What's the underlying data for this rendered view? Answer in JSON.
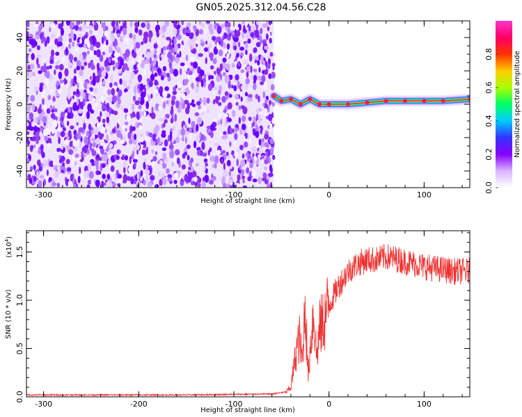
{
  "title": "GN05.2025.312.04.56.C28",
  "chart_data": [
    {
      "type": "heatmap",
      "xlabel": "Height of straight line (km)",
      "ylabel": "Frequency (Hz)",
      "xlim": [
        -318,
        148
      ],
      "ylim": [
        -50,
        50
      ],
      "x_ticks": [
        -300,
        -200,
        -100,
        0,
        100
      ],
      "x_tick_labels": [
        "-300",
        "-200",
        "-100",
        "0",
        "100"
      ],
      "y_ticks": [
        -40,
        -20,
        0,
        20,
        40
      ],
      "y_tick_labels": [
        "-40",
        "-20",
        "0",
        "20",
        "40"
      ],
      "noise_region_x": [
        -318,
        -58
      ],
      "ridge": [
        {
          "x": -58,
          "y": 5
        },
        {
          "x": -50,
          "y": 2
        },
        {
          "x": -40,
          "y": 3
        },
        {
          "x": -30,
          "y": 0
        },
        {
          "x": -20,
          "y": 3
        },
        {
          "x": -10,
          "y": 0
        },
        {
          "x": 0,
          "y": 0
        },
        {
          "x": 20,
          "y": 0
        },
        {
          "x": 40,
          "y": 1
        },
        {
          "x": 60,
          "y": 2
        },
        {
          "x": 80,
          "y": 2
        },
        {
          "x": 100,
          "y": 2
        },
        {
          "x": 120,
          "y": 2
        },
        {
          "x": 148,
          "y": 3
        }
      ],
      "colorbar": {
        "label": "Normalized spectral amplitude",
        "ticks": [
          0.0,
          0.2,
          0.4,
          0.6,
          0.8
        ],
        "tick_labels": [
          "0.0",
          "0.2",
          "0.4",
          "0.6",
          "0.8"
        ],
        "range": [
          0,
          1
        ],
        "colors": [
          "#ffffff",
          "#d9b3ff",
          "#8800ff",
          "#3333ff",
          "#00ccff",
          "#00ff66",
          "#aaff00",
          "#ffcc00",
          "#ff3300",
          "#ff0066",
          "#ff33cc"
        ]
      },
      "grid": false
    },
    {
      "type": "line",
      "xlabel": "Height of straight line (km)",
      "ylabel": "SNR (10 * v/v)",
      "scale_note": "(x10",
      "scale_exp": "4",
      "scale_close": ")",
      "xlim": [
        -318,
        148
      ],
      "ylim": [
        0,
        1.72
      ],
      "x_ticks": [
        -300,
        -200,
        -100,
        0,
        100
      ],
      "x_tick_labels": [
        "-300",
        "-200",
        "-100",
        "0",
        "100"
      ],
      "y_ticks": [
        0.0,
        0.5,
        1.0,
        1.5
      ],
      "y_tick_labels": [
        "0.0",
        "0.5",
        "1.0",
        "1.5"
      ],
      "color": "#ee3333",
      "series": [
        {
          "x": [
            -318,
            -250,
            -150,
            -60,
            -45,
            -40,
            -37,
            -34,
            -31,
            -28,
            -25,
            -22,
            -19,
            -16,
            -13,
            -10,
            -5,
            0,
            10,
            20,
            30,
            40,
            50,
            60,
            70,
            80,
            90,
            100,
            110,
            120,
            130,
            148
          ],
          "values": [
            0.02,
            0.02,
            0.02,
            0.03,
            0.05,
            0.1,
            0.3,
            0.5,
            0.6,
            0.35,
            1.0,
            0.2,
            0.6,
            0.9,
            0.4,
            0.7,
            0.8,
            0.95,
            1.15,
            1.3,
            1.38,
            1.42,
            1.42,
            1.45,
            1.43,
            1.4,
            1.38,
            1.35,
            1.33,
            1.32,
            1.3,
            1.3
          ]
        }
      ],
      "grid": false
    }
  ]
}
